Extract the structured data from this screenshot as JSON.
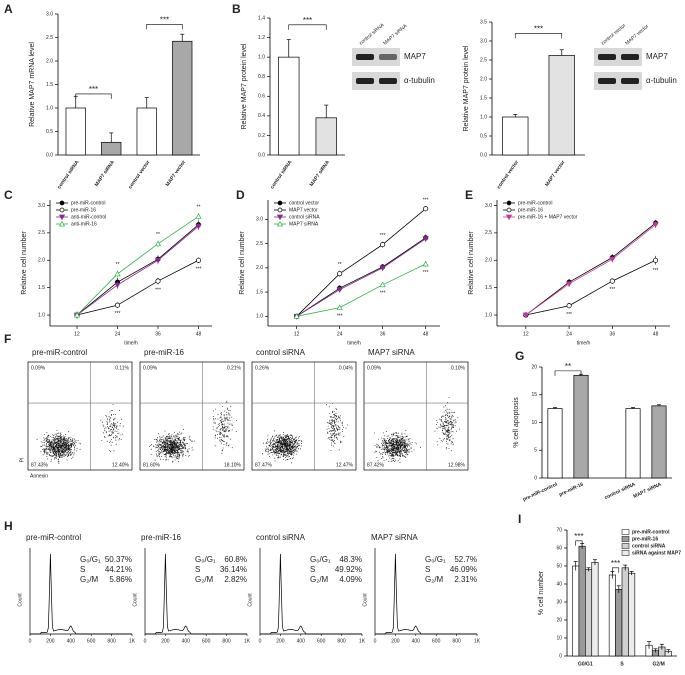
{
  "chart_data": [
    {
      "type": "bar",
      "panel": "A",
      "y_label": "Relative MAP7 mRNA level",
      "categories": [
        "control siRNA",
        "MAP7 siRNA",
        "control vector",
        "MAP7 vector"
      ],
      "values": [
        1.0,
        0.27,
        1.0,
        2.42
      ],
      "errors": [
        0.25,
        0.2,
        0.22,
        0.15
      ],
      "colors": [
        "#ffffff",
        "#a8a8a8",
        "#ffffff",
        "#a8a8a8"
      ],
      "ylim": [
        0,
        3
      ],
      "yticks": [
        {
          "value": 0,
          "label": "0.0"
        },
        {
          "value": 0.5,
          "label": "0.5"
        },
        {
          "value": 1,
          "label": "1.0"
        },
        {
          "value": 1.5,
          "label": "1.5"
        },
        {
          "value": 2,
          "label": "2.0"
        },
        {
          "value": 2.5,
          "label": "2.5"
        },
        {
          "value": 3,
          "label": "3.0"
        }
      ],
      "annotations": [
        "***",
        "***"
      ]
    },
    {
      "type": "bar",
      "panel": "B",
      "y_label": "Relative MAP7 protein level",
      "categories": [
        "control siRNA",
        "MAP7 siRNA"
      ],
      "values": [
        1.0,
        0.38
      ],
      "errors": [
        0.18,
        0.13
      ],
      "colors": [
        "#ffffff",
        "#e2e2e2"
      ],
      "ylim": [
        0,
        1.4
      ],
      "yticks": [
        {
          "value": 0,
          "label": "0.0"
        },
        {
          "value": 0.2,
          "label": "0.2"
        },
        {
          "value": 0.4,
          "label": "0.4"
        },
        {
          "value": 0.6,
          "label": "0.6"
        },
        {
          "value": 0.8,
          "label": "0.8"
        },
        {
          "value": 1,
          "label": "1.0"
        },
        {
          "value": 1.2,
          "label": "1.2"
        },
        {
          "value": 1.4,
          "label": "1.4"
        }
      ],
      "annotations": [
        "***"
      ],
      "blot": {
        "lanes": [
          "control siRNA",
          "MAP7 siRNA"
        ],
        "bands": [
          "MAP7",
          "α-tubulin"
        ]
      }
    },
    {
      "type": "bar",
      "y_label": "Relative MAP7 protein level",
      "categories": [
        "control vector",
        "MAP7 vector"
      ],
      "values": [
        1.0,
        2.62
      ],
      "errors": [
        0.07,
        0.15
      ],
      "colors": [
        "#ffffff",
        "#e2e2e2"
      ],
      "ylim": [
        0,
        3.5
      ],
      "yticks": [
        {
          "value": 0,
          "label": "0.0"
        },
        {
          "value": 0.5,
          "label": "0.5"
        },
        {
          "value": 1,
          "label": "1.0"
        },
        {
          "value": 1.5,
          "label": "1.5"
        },
        {
          "value": 2,
          "label": "2.0"
        },
        {
          "value": 2.5,
          "label": "2.5"
        },
        {
          "value": 3,
          "label": "3.0"
        },
        {
          "value": 3.5,
          "label": "3.5"
        }
      ],
      "annotations": [
        "***"
      ],
      "blot": {
        "lanes": [
          "control vector",
          "MAP7 vector"
        ],
        "bands": [
          "MAP7",
          "α-tubulin"
        ]
      }
    },
    {
      "type": "line",
      "panel": "C",
      "x_label": "time/h",
      "y_label": "Relative cell number",
      "x": [
        12,
        24,
        36,
        48
      ],
      "xlim": [
        4,
        52
      ],
      "xticks": [
        12,
        24,
        36,
        48
      ],
      "ylim": [
        0.8,
        3.1
      ],
      "yticks": [
        {
          "value": 1,
          "label": "1.0"
        },
        {
          "value": 1.5,
          "label": "1.5"
        },
        {
          "value": 2,
          "label": "2.0"
        },
        {
          "value": 2.5,
          "label": "2.5"
        },
        {
          "value": 3,
          "label": "3.0"
        }
      ],
      "legend": "upper left",
      "series": [
        {
          "name": "pre-miR-control",
          "color": "#000000",
          "marker": "circle",
          "values": [
            1.0,
            1.6,
            2.02,
            2.65
          ],
          "errors": [
            0.06,
            0.08,
            0.07,
            0.08
          ]
        },
        {
          "name": "pre-miR-16",
          "color": "#000000",
          "marker": "open-circle",
          "values": [
            1.0,
            1.18,
            1.62,
            2.0
          ],
          "errors": [
            0.06,
            0.05,
            0.06,
            0.05
          ]
        },
        {
          "name": "anti-miR-control",
          "color": "#8a2b8f",
          "marker": "triangle-down",
          "values": [
            1.0,
            1.55,
            2.0,
            2.62
          ],
          "errors": [
            0.05,
            0.07,
            0.07,
            0.07
          ]
        },
        {
          "name": "anti-miR-16",
          "color": "#33b24a",
          "marker": "open-triangle",
          "values": [
            1.0,
            1.75,
            2.3,
            2.8
          ],
          "errors": [
            0.05,
            0.06,
            0.06,
            0.06
          ]
        }
      ],
      "annotations": [
        "**",
        "***",
        "**",
        "***",
        "**",
        "***"
      ]
    },
    {
      "type": "line",
      "panel": "D",
      "x_label": "time/h",
      "y_label": "Relative cell number",
      "x": [
        12,
        24,
        36,
        48
      ],
      "xlim": [
        4,
        52
      ],
      "xticks": [
        12,
        24,
        36,
        48
      ],
      "ylim": [
        0.8,
        3.4
      ],
      "yticks": [
        {
          "value": 1,
          "label": "1.0"
        },
        {
          "value": 1.5,
          "label": "1.5"
        },
        {
          "value": 2,
          "label": "2.0"
        },
        {
          "value": 2.5,
          "label": "2.5"
        },
        {
          "value": 3,
          "label": "3.0"
        }
      ],
      "legend": "upper left",
      "series": [
        {
          "name": "control vector",
          "color": "#000000",
          "marker": "circle",
          "values": [
            1.0,
            1.58,
            2.02,
            2.62
          ],
          "errors": [
            0.05,
            0.06,
            0.06,
            0.07
          ]
        },
        {
          "name": "MAP7 vector",
          "color": "#000000",
          "marker": "open-circle",
          "values": [
            1.0,
            1.88,
            2.48,
            3.22
          ],
          "errors": [
            0.05,
            0.06,
            0.06,
            0.05
          ]
        },
        {
          "name": "control siRNA",
          "color": "#8a2b8f",
          "marker": "triangle-down",
          "values": [
            1.0,
            1.55,
            2.0,
            2.6
          ],
          "errors": [
            0.05,
            0.06,
            0.06,
            0.06
          ]
        },
        {
          "name": "MAP7 siRNA",
          "color": "#33b24a",
          "marker": "open-triangle",
          "values": [
            1.0,
            1.18,
            1.65,
            2.08
          ],
          "errors": [
            0.05,
            0.05,
            0.05,
            0.06
          ]
        }
      ],
      "annotations": [
        "**",
        "***",
        "***",
        "***",
        "***",
        "***"
      ]
    },
    {
      "type": "line",
      "panel": "E",
      "x_label": "time/h",
      "y_label": "Relative cell number",
      "x": [
        12,
        24,
        36,
        48
      ],
      "xlim": [
        4,
        52
      ],
      "xticks": [
        12,
        24,
        36,
        48
      ],
      "ylim": [
        0.8,
        3.1
      ],
      "yticks": [
        {
          "value": 1,
          "label": "1.0"
        },
        {
          "value": 1.5,
          "label": "1.5"
        },
        {
          "value": 2,
          "label": "2.0"
        },
        {
          "value": 2.5,
          "label": "2.5"
        },
        {
          "value": 3,
          "label": "3.0"
        }
      ],
      "legend": "upper left",
      "series": [
        {
          "name": "pre-miR-control",
          "color": "#000000",
          "marker": "circle",
          "values": [
            1.0,
            1.6,
            2.05,
            2.68
          ],
          "errors": [
            0.05,
            0.06,
            0.06,
            0.06
          ]
        },
        {
          "name": "pre-miR-16",
          "color": "#000000",
          "marker": "open-circle",
          "values": [
            1.0,
            1.17,
            1.62,
            2.0
          ],
          "errors": [
            0.05,
            0.05,
            0.05,
            0.08
          ]
        },
        {
          "name": "pre-miR-16 + MAP7 vector",
          "color": "#c2399b",
          "marker": "triangle-down",
          "values": [
            1.0,
            1.57,
            2.02,
            2.65
          ],
          "errors": [
            0.05,
            0.06,
            0.06,
            0.06
          ]
        }
      ],
      "annotations": [
        "***",
        "***",
        "***"
      ]
    },
    {
      "type": "bar",
      "panel": "G",
      "y_label": "% cell apoptosis",
      "categories": [
        "pre-miR-control",
        "pre-miR-16",
        null,
        "control siRNA",
        "MAP7 siRNA"
      ],
      "values": [
        12.5,
        18.5,
        null,
        12.5,
        13.0
      ],
      "errors": [
        0.2,
        0.2,
        null,
        0.2,
        0.2
      ],
      "colors": [
        "#ffffff",
        "#a8a8a8",
        null,
        "#ffffff",
        "#a8a8a8"
      ],
      "ylim": [
        0,
        20
      ],
      "yticks": [
        0,
        5,
        10,
        15,
        20
      ],
      "annotations": [
        "**"
      ]
    },
    {
      "type": "bar",
      "panel": "I",
      "y_label": "% cell number",
      "categories": [
        "G0/G1",
        "S",
        "G2/M"
      ],
      "legend": "upper right",
      "series": [
        {
          "name": "pre-miR-control",
          "color": "#ffffff",
          "values": [
            50,
            45,
            6
          ],
          "errors": [
            2.5,
            2,
            2
          ]
        },
        {
          "name": "pre-miR-16",
          "color": "#9a9a9a",
          "values": [
            61,
            37,
            3
          ],
          "errors": [
            1.5,
            2,
            1
          ]
        },
        {
          "name": "control siRNA",
          "color": "#d0d0d0",
          "values": [
            48,
            49,
            5
          ],
          "errors": [
            1,
            1.5,
            1.5
          ]
        },
        {
          "name": "siRNA against MAP7",
          "color": "#ececec",
          "values": [
            52,
            46,
            2.5
          ],
          "errors": [
            1.5,
            1,
            1
          ]
        }
      ],
      "ylim": [
        0,
        70
      ],
      "yticks": [
        0,
        10,
        20,
        30,
        40,
        50,
        60,
        70
      ],
      "annotations": [
        "***",
        "***"
      ]
    }
  ],
  "flow_panel": {
    "panel": "F",
    "x_label": "Annexin",
    "y_label": "PI",
    "plots": [
      {
        "title": "pre-miR-control",
        "quadrants": [
          "0.09%",
          "0.11%",
          "87.43%",
          "12.40%"
        ]
      },
      {
        "title": "pre-miR-16",
        "quadrants": [
          "0.09%",
          "0.21%",
          "81.60%",
          "18.10%"
        ]
      },
      {
        "title": "control siRNA",
        "quadrants": [
          "0.26%",
          "0.04%",
          "87.47%",
          "12.47%"
        ]
      },
      {
        "title": "MAP7 siRNA",
        "quadrants": [
          "0.09%",
          "0.10%",
          "87.42%",
          "12.98%"
        ]
      }
    ]
  },
  "cycle_panel": {
    "panel": "H",
    "y_label": "Count",
    "x_ticks": [
      "0",
      "200",
      "400",
      "600",
      "800",
      "1K"
    ],
    "plots": [
      {
        "title": "pre-miR-control",
        "rows": [
          [
            "G₀/G₁",
            "50.37%"
          ],
          [
            "S",
            "44.21%"
          ],
          [
            "G₂/M",
            "5.86%"
          ]
        ]
      },
      {
        "title": "pre-miR-16",
        "rows": [
          [
            "G₀/G₁",
            "60.8%"
          ],
          [
            "S",
            "36.14%"
          ],
          [
            "G₂/M",
            "2.82%"
          ]
        ]
      },
      {
        "title": "control siRNA",
        "rows": [
          [
            "G₀/G₁",
            "48.3%"
          ],
          [
            "S",
            "49.92%"
          ],
          [
            "G₂/M",
            "4.09%"
          ]
        ]
      },
      {
        "title": "MAP7 siRNA",
        "rows": [
          [
            "G₀/G₁",
            "52.7%"
          ],
          [
            "S",
            "46.09%"
          ],
          [
            "G₂/M",
            "2.31%"
          ]
        ]
      }
    ]
  }
}
